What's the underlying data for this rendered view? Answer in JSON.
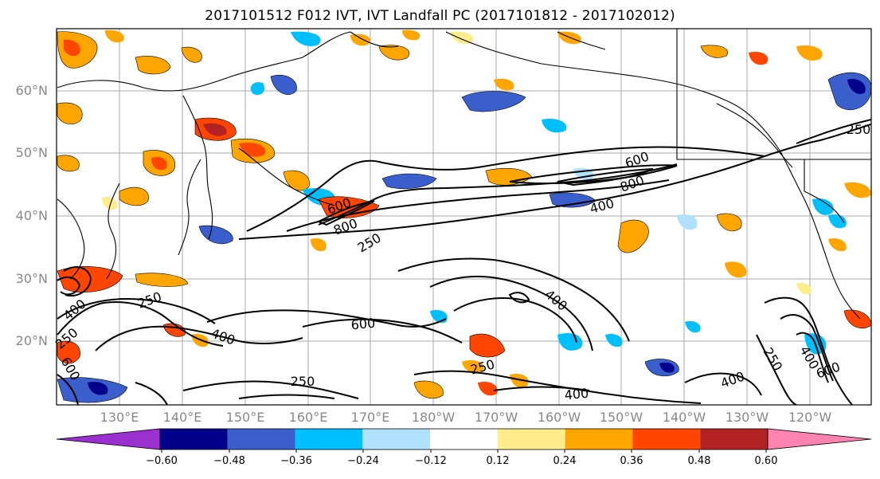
{
  "title": "2017101512 F012 IVT, IVT Landfall PC (2017101812 - 2017102012)",
  "lat_labels": [
    "60°N",
    "50°N",
    "40°N",
    "30°N",
    "20°N"
  ],
  "lon_labels": [
    "130°E",
    "140°E",
    "150°E",
    "160°E",
    "170°E",
    "180°W",
    "170°W",
    "160°W",
    "150°W",
    "140°W",
    "130°W",
    "120°W"
  ],
  "contour_labels": [
    "600",
    "800",
    "400",
    "600",
    "800",
    "250",
    "250",
    "400",
    "250",
    "600",
    "400",
    "600",
    "400",
    "250",
    "250",
    "400",
    "400",
    "400",
    "250",
    "600",
    "400",
    "250"
  ],
  "colorbar": {
    "colors": [
      "#9b30d0",
      "#00008b",
      "#3a5fcd",
      "#00bfff",
      "#b0e2ff",
      "#ffffff",
      "#ffec8b",
      "#ffa500",
      "#ff4500",
      "#b22222",
      "#ff83b0"
    ],
    "ticks": [
      "−0.60",
      "−0.48",
      "−0.36",
      "−0.24",
      "−0.12",
      "0.12",
      "0.24",
      "0.36",
      "0.48",
      "0.60"
    ]
  }
}
